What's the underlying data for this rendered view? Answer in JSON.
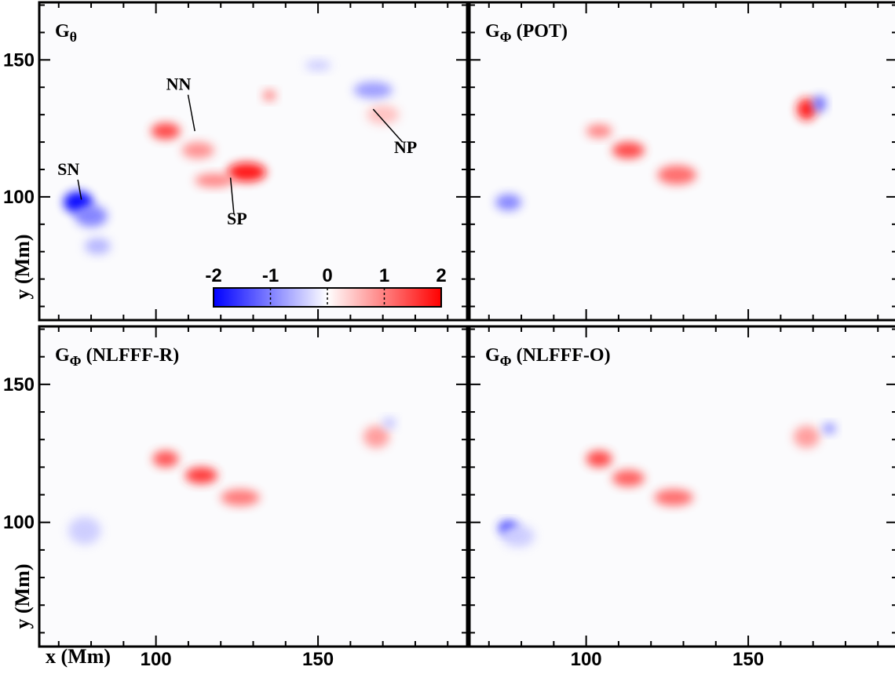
{
  "figure": {
    "ylabel": "y (Mm)",
    "xlabel": "x (Mm)"
  },
  "chart_data": {
    "type": "heatmap",
    "xlabel": "x (Mm)",
    "ylabel": "y (Mm)",
    "xlim": [
      64,
      196
    ],
    "ylim": [
      55,
      171
    ],
    "xticks": [
      100,
      150
    ],
    "xtick_labels": [
      "100",
      "150"
    ],
    "yticks": [
      100,
      150
    ],
    "ytick_labels": [
      "100",
      "150"
    ],
    "colorbar": {
      "range": [
        -2,
        2
      ],
      "tick_values": [
        -2,
        -1,
        0,
        1,
        2
      ],
      "tick_labels": [
        "-2",
        "-1",
        "0",
        "1",
        "2"
      ],
      "colors": {
        "min": "#0000ff",
        "mid": "#ffffff",
        "max": "#ff0000"
      }
    },
    "contour_colors": {
      "positive": "#a845b4",
      "negative": "#4fb3a8"
    },
    "panels": [
      {
        "id": "p1",
        "title_main": "G",
        "title_sub": "θ",
        "title_suffix": "",
        "annotations": [
          {
            "text": "SN",
            "x": 73,
            "y": 108,
            "arrow_to": [
              77,
              99
            ]
          },
          {
            "text": "NN",
            "x": 107,
            "y": 139,
            "arrow_to": [
              112,
              124
            ]
          },
          {
            "text": "SP",
            "x": 125,
            "y": 90,
            "arrow_to": [
              123,
              107
            ]
          },
          {
            "text": "NP",
            "x": 177,
            "y": 116,
            "arrow_to": [
              167,
              132
            ]
          }
        ],
        "blobs": [
          {
            "x": 76,
            "y": 98,
            "rx": 4.5,
            "ry": 4,
            "v": -2.0
          },
          {
            "x": 80,
            "y": 93,
            "rx": 5,
            "ry": 4,
            "v": -1.0
          },
          {
            "x": 82,
            "y": 82,
            "rx": 4,
            "ry": 3,
            "v": -0.6
          },
          {
            "x": 103,
            "y": 124,
            "rx": 4.5,
            "ry": 3,
            "v": 1.5
          },
          {
            "x": 113,
            "y": 117,
            "rx": 5,
            "ry": 3,
            "v": 0.9
          },
          {
            "x": 128,
            "y": 109,
            "rx": 6,
            "ry": 3.5,
            "v": 1.9
          },
          {
            "x": 118,
            "y": 106,
            "rx": 6,
            "ry": 2.5,
            "v": 1.0
          },
          {
            "x": 135,
            "y": 137,
            "rx": 2,
            "ry": 2,
            "v": 1.0
          },
          {
            "x": 170,
            "y": 130,
            "rx": 5,
            "ry": 3.5,
            "v": 0.5
          },
          {
            "x": 167,
            "y": 139,
            "rx": 6,
            "ry": 3,
            "v": -0.8
          },
          {
            "x": 150,
            "y": 148,
            "rx": 4,
            "ry": 2,
            "v": -0.4
          }
        ]
      },
      {
        "id": "p2",
        "title_main": "G",
        "title_sub": "Φ",
        "title_suffix": " (POT)",
        "annotations": [],
        "blobs": [
          {
            "x": 76,
            "y": 98,
            "rx": 4,
            "ry": 3,
            "v": -1.0
          },
          {
            "x": 104,
            "y": 124,
            "rx": 4,
            "ry": 2.5,
            "v": 1.0
          },
          {
            "x": 113,
            "y": 117,
            "rx": 5,
            "ry": 3,
            "v": 1.5
          },
          {
            "x": 128,
            "y": 108,
            "rx": 6,
            "ry": 3.5,
            "v": 1.2
          },
          {
            "x": 168,
            "y": 132,
            "rx": 3,
            "ry": 4,
            "v": 1.8
          },
          {
            "x": 172,
            "y": 134,
            "rx": 2,
            "ry": 3,
            "v": -1.2
          }
        ]
      },
      {
        "id": "p3",
        "title_main": "G",
        "title_sub": "Φ",
        "title_suffix": " (NLFFF-R)",
        "annotations": [],
        "blobs": [
          {
            "x": 78,
            "y": 97,
            "rx": 5,
            "ry": 5,
            "v": -0.4
          },
          {
            "x": 103,
            "y": 123,
            "rx": 4,
            "ry": 3,
            "v": 1.4
          },
          {
            "x": 114,
            "y": 117,
            "rx": 5,
            "ry": 3,
            "v": 1.6
          },
          {
            "x": 126,
            "y": 109,
            "rx": 6,
            "ry": 3,
            "v": 1.1
          },
          {
            "x": 168,
            "y": 131,
            "rx": 4,
            "ry": 4,
            "v": 0.8
          },
          {
            "x": 172,
            "y": 136,
            "rx": 2,
            "ry": 2,
            "v": -0.5
          }
        ]
      },
      {
        "id": "p4",
        "title_main": "G",
        "title_sub": "Φ",
        "title_suffix": " (NLFFF-O)",
        "annotations": [],
        "blobs": [
          {
            "x": 76,
            "y": 98,
            "rx": 3,
            "ry": 2.5,
            "v": -1.6
          },
          {
            "x": 79,
            "y": 95,
            "rx": 5,
            "ry": 4,
            "v": -0.4
          },
          {
            "x": 104,
            "y": 123,
            "rx": 4,
            "ry": 3,
            "v": 1.5
          },
          {
            "x": 113,
            "y": 116,
            "rx": 5,
            "ry": 3,
            "v": 1.3
          },
          {
            "x": 127,
            "y": 109,
            "rx": 6,
            "ry": 3,
            "v": 1.2
          },
          {
            "x": 168,
            "y": 131,
            "rx": 4,
            "ry": 4,
            "v": 0.8
          },
          {
            "x": 175,
            "y": 134,
            "rx": 2,
            "ry": 2,
            "v": -0.9
          }
        ]
      }
    ]
  }
}
